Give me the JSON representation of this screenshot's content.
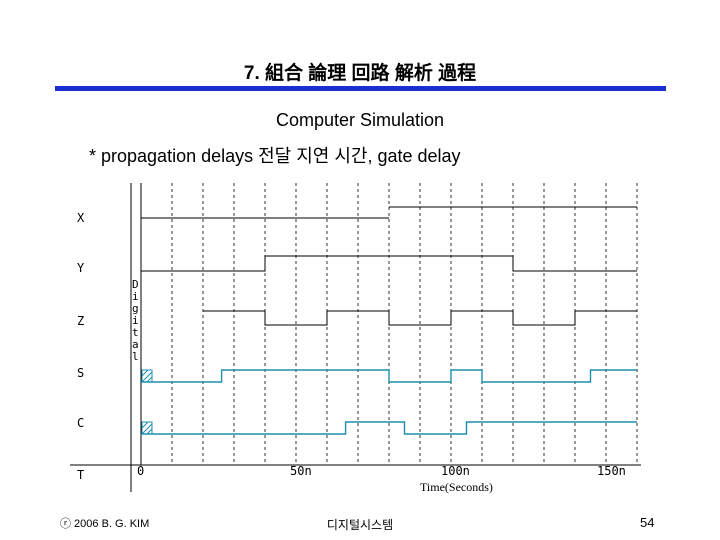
{
  "slide": {
    "title": "7. 組合 論理 回路 解析 過程",
    "subtitle": "Computer Simulation",
    "bullet": "* propagation delays 전달 지연 시간, gate delay"
  },
  "simulator": {
    "signal_labels": [
      "X",
      "Y",
      "Z",
      "S",
      "C",
      "T"
    ],
    "digital_label": [
      "D",
      "i",
      "g",
      "i",
      "t",
      "a",
      "l"
    ],
    "time_ticks": [
      "0",
      "50n",
      "100n",
      "150n"
    ],
    "axis_label": "Time(Seconds)",
    "colors": {
      "input_trace": "#000000",
      "output_trace": "#1f8fb0",
      "grid": "#000000",
      "title_bar": "#1e2fd0"
    },
    "waveforms_ns": {
      "X": {
        "low_until": 80,
        "then": "high"
      },
      "Y": [
        [
          0,
          40,
          0
        ],
        [
          40,
          120,
          1
        ],
        [
          120,
          160,
          0
        ]
      ],
      "Z": [
        [
          20,
          40,
          1
        ],
        [
          40,
          60,
          0
        ],
        [
          60,
          80,
          1
        ],
        [
          80,
          100,
          0
        ],
        [
          100,
          120,
          1
        ],
        [
          120,
          140,
          0
        ],
        [
          140,
          160,
          1
        ]
      ],
      "S": [
        [
          0,
          26,
          0
        ],
        [
          26,
          80,
          1
        ],
        [
          80,
          100,
          0
        ],
        [
          100,
          110,
          1
        ],
        [
          110,
          145,
          0
        ],
        [
          145,
          160,
          1
        ]
      ],
      "C": [
        [
          0,
          66,
          0
        ],
        [
          66,
          85,
          1
        ],
        [
          85,
          105,
          0
        ],
        [
          105,
          160,
          1
        ]
      ]
    }
  },
  "footer": {
    "copyright": "ⓡ 2006 B. G. KIM",
    "course": "디지털시스템",
    "page": "54"
  }
}
